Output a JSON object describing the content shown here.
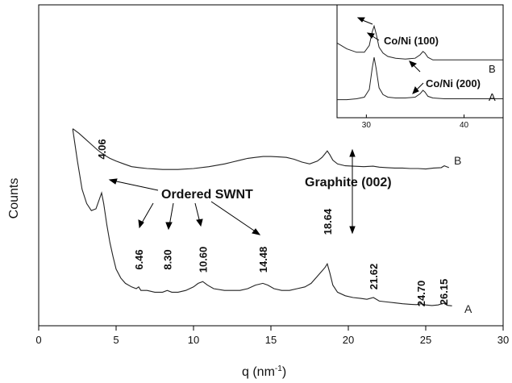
{
  "chart_data": [
    {
      "type": "line",
      "title": "",
      "xlabel": "q (nm",
      "xlabel_sup": "-1",
      "xlabel_close": ")",
      "ylabel": "Counts",
      "xlim": [
        0,
        30
      ],
      "xticks": [
        0,
        5,
        10,
        15,
        20,
        25,
        30
      ],
      "yticks": [],
      "series": [
        {
          "name": "A",
          "x": [
            2.2,
            2.5,
            2.8,
            3.1,
            3.4,
            3.7,
            3.9,
            4.06,
            4.2,
            4.4,
            4.6,
            4.8,
            5.0,
            5.3,
            5.6,
            6.0,
            6.3,
            6.46,
            6.6,
            7.0,
            7.5,
            8.0,
            8.3,
            8.6,
            9.0,
            9.5,
            10.0,
            10.3,
            10.6,
            10.9,
            11.3,
            12.0,
            12.5,
            13.0,
            13.5,
            14.0,
            14.48,
            14.8,
            15.2,
            15.7,
            16.2,
            16.7,
            17.2,
            17.6,
            18.0,
            18.3,
            18.5,
            18.64,
            18.8,
            19.0,
            19.3,
            19.8,
            20.3,
            20.8,
            21.2,
            21.62,
            22.0,
            22.5,
            23.0,
            23.5,
            24.0,
            24.4,
            24.7,
            25.0,
            25.4,
            25.8,
            26.15,
            26.4,
            26.7
          ],
          "y": [
            100,
            82,
            66,
            58,
            54,
            55,
            60,
            64,
            58,
            46,
            36,
            28,
            21,
            16,
            13,
            11,
            10,
            11,
            9,
            9,
            8,
            8,
            9,
            8,
            8,
            9,
            11,
            13,
            14,
            12,
            10,
            9,
            9,
            9,
            10,
            12,
            13,
            12,
            10,
            9,
            9,
            10,
            11,
            13,
            17,
            20,
            22,
            24,
            19,
            12,
            8,
            6,
            5,
            4.5,
            4,
            5,
            3,
            2.5,
            2,
            1.5,
            1.2,
            1,
            1.5,
            0.8,
            0.5,
            0.8,
            1.8,
            0.6,
            0.3
          ]
        },
        {
          "name": "B",
          "x": [
            2.2,
            2.6,
            3.0,
            3.4,
            3.8,
            4.2,
            4.6,
            5.0,
            5.5,
            6.0,
            6.5,
            7.0,
            7.5,
            8.0,
            9.0,
            10.0,
            11.0,
            12.0,
            12.5,
            13.0,
            13.5,
            14.0,
            14.5,
            15.0,
            15.5,
            16.0,
            16.5,
            17.0,
            17.5,
            18.0,
            18.3,
            18.5,
            18.64,
            18.8,
            19.0,
            19.3,
            19.8,
            20.3,
            21.0,
            21.6,
            22.0,
            22.5,
            23.0,
            23.5,
            24.0,
            24.5,
            25.0,
            25.5,
            26.0,
            26.2,
            26.5
          ],
          "y": [
            183,
            178,
            172,
            166,
            160,
            155,
            151,
            148,
            145,
            142,
            141,
            140,
            139.5,
            139,
            139,
            140,
            142,
            145,
            147,
            149,
            151,
            152,
            153,
            153,
            152.5,
            152,
            150,
            147,
            145,
            148,
            152,
            156,
            159,
            155,
            149,
            145,
            143,
            142.5,
            142,
            142.5,
            141.5,
            141,
            140.5,
            140.5,
            140,
            140,
            139.5,
            140.5,
            141,
            143,
            141
          ]
        }
      ],
      "peak_labels": [
        "4.06",
        "6.46",
        "8.30",
        "10.60",
        "14.48",
        "18.64",
        "21.62",
        "24.70",
        "26.15"
      ],
      "peak_positions": [
        4.06,
        6.46,
        8.3,
        10.6,
        14.48,
        18.64,
        21.62,
        24.7,
        26.15
      ],
      "annotations": {
        "ordered_swnt": "Ordered SWNT",
        "graphite": "Graphite (002)"
      }
    },
    {
      "type": "line",
      "title": "",
      "xlim": [
        27,
        44
      ],
      "xticks": [
        30,
        40
      ],
      "series": [
        {
          "name": "A",
          "x": [
            27,
            28,
            29,
            29.8,
            30.3,
            30.6,
            30.8,
            31.0,
            31.3,
            31.7,
            32.2,
            33,
            34,
            35,
            35.5,
            35.8,
            36.0,
            36.3,
            36.8,
            38,
            40,
            42,
            44
          ],
          "y": [
            8,
            8,
            9,
            11,
            20,
            45,
            58,
            45,
            22,
            14,
            11,
            10,
            10,
            11,
            15,
            19,
            17,
            12,
            10,
            9,
            9,
            9,
            9
          ]
        },
        {
          "name": "B",
          "x": [
            27,
            28,
            29,
            29.8,
            30.3,
            30.6,
            30.8,
            31.0,
            31.3,
            31.7,
            32.2,
            33,
            34,
            35,
            35.5,
            35.8,
            36.0,
            36.3,
            36.8,
            38,
            40,
            42,
            44
          ],
          "y": [
            75,
            68,
            64,
            64,
            72,
            88,
            95,
            86,
            70,
            63,
            59,
            57,
            56,
            57,
            61,
            65,
            63,
            58,
            55,
            55,
            55,
            55,
            55
          ]
        }
      ],
      "annotations": {
        "co_ni_100": "Co/Ni (100)",
        "co_ni_200": "Co/Ni (200)"
      }
    }
  ]
}
